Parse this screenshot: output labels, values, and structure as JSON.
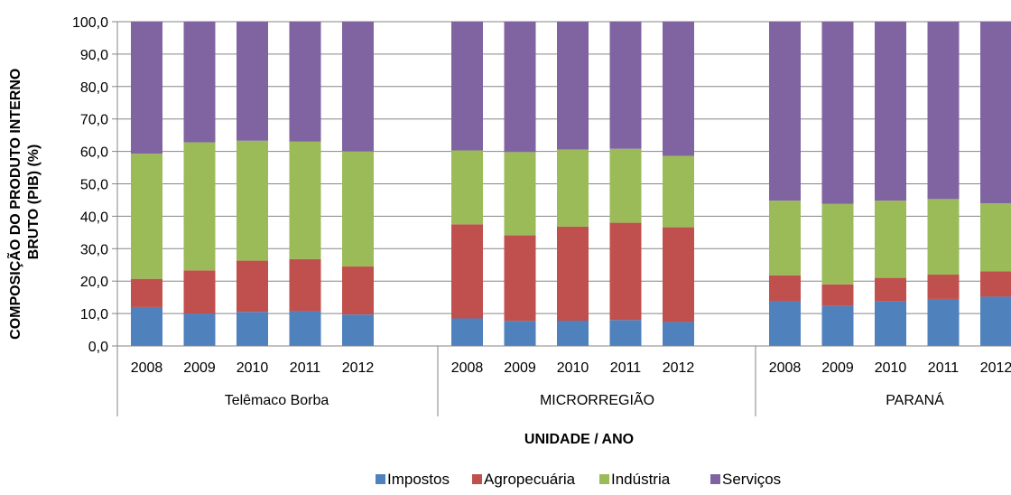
{
  "chart_data": {
    "type": "bar",
    "stacked": true,
    "xlabel": "UNIDADE / ANO",
    "ylabel_lines": [
      "COMPOSIÇÃO DO PRODUTO INTERNO",
      "BRUTO (PIB) (%)"
    ],
    "ylim": [
      0,
      100
    ],
    "yticks": [
      "0,0",
      "10,0",
      "20,0",
      "30,0",
      "40,0",
      "50,0",
      "60,0",
      "70,0",
      "80,0",
      "90,0",
      "100,0"
    ],
    "grid": true,
    "legend_position": "bottom",
    "groups": [
      {
        "name": "Telêmaco Borba",
        "categories": [
          "2008",
          "2009",
          "2010",
          "2011",
          "2012"
        ],
        "series": [
          {
            "name": "Impostos",
            "values": [
              12.0,
              10.0,
              10.5,
              10.7,
              9.7
            ]
          },
          {
            "name": "Agropecuária",
            "values": [
              8.7,
              13.3,
              15.8,
              16.1,
              14.8
            ]
          },
          {
            "name": "Indústria",
            "values": [
              38.6,
              39.5,
              37.0,
              36.2,
              35.5
            ]
          },
          {
            "name": "Serviços",
            "values": [
              40.7,
              37.2,
              36.7,
              37.0,
              40.0
            ]
          }
        ]
      },
      {
        "name": "MICRORREGIÃO",
        "categories": [
          "2008",
          "2009",
          "2010",
          "2011",
          "2012"
        ],
        "series": [
          {
            "name": "Impostos",
            "values": [
              8.5,
              7.7,
              7.8,
              8.0,
              7.4
            ]
          },
          {
            "name": "Agropecuária",
            "values": [
              29.0,
              26.4,
              29.0,
              30.0,
              29.2
            ]
          },
          {
            "name": "Indústria",
            "values": [
              22.8,
              25.7,
              23.8,
              22.8,
              22.0
            ]
          },
          {
            "name": "Serviços",
            "values": [
              39.7,
              40.2,
              39.4,
              39.2,
              41.4
            ]
          }
        ]
      },
      {
        "name": "PARANÁ",
        "categories": [
          "2008",
          "2009",
          "2010",
          "2011",
          "2012"
        ],
        "series": [
          {
            "name": "Impostos",
            "values": [
              13.8,
              12.3,
              13.7,
              14.5,
              15.2
            ]
          },
          {
            "name": "Agropecuária",
            "values": [
              8.0,
              6.7,
              7.3,
              7.5,
              7.8
            ]
          },
          {
            "name": "Indústria",
            "values": [
              23.0,
              24.8,
              23.8,
              23.3,
              21.0
            ]
          },
          {
            "name": "Serviços",
            "values": [
              55.2,
              56.2,
              55.2,
              54.7,
              56.0
            ]
          }
        ]
      }
    ],
    "colors": {
      "Impostos": "#4F81BD",
      "Agropecuária": "#C0504D",
      "Indústria": "#9BBB59",
      "Serviços": "#8064A2"
    }
  }
}
